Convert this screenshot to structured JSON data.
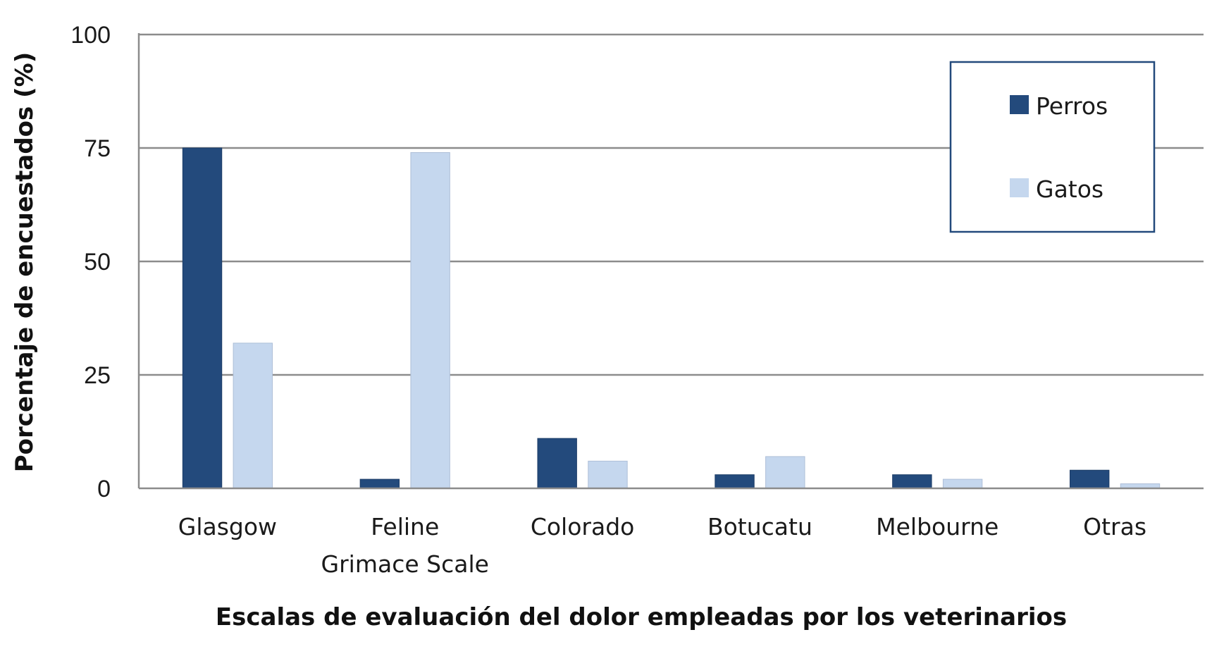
{
  "chart_data": {
    "type": "bar",
    "title": "",
    "xlabel": "Escalas de evaluación del dolor empleadas por los veterinarios",
    "ylabel": "Porcentaje de encuestados (%)",
    "ylim": [
      0,
      100
    ],
    "yticks": [
      "0",
      "25",
      "50",
      "75",
      "100"
    ],
    "grid": true,
    "legend_position": "top-right",
    "categories": [
      [
        "Glasgow"
      ],
      [
        "Feline",
        "Grimace Scale"
      ],
      [
        "Colorado"
      ],
      [
        "Botucatu"
      ],
      [
        "Melbourne"
      ],
      [
        "Otras"
      ]
    ],
    "series": [
      {
        "name": "Perros",
        "color": "#234a7c",
        "values": [
          75,
          2,
          11,
          3,
          3,
          4
        ]
      },
      {
        "name": "Gatos",
        "color": "#c5d7ee",
        "values": [
          32,
          74,
          6,
          7,
          2,
          1
        ]
      }
    ]
  }
}
